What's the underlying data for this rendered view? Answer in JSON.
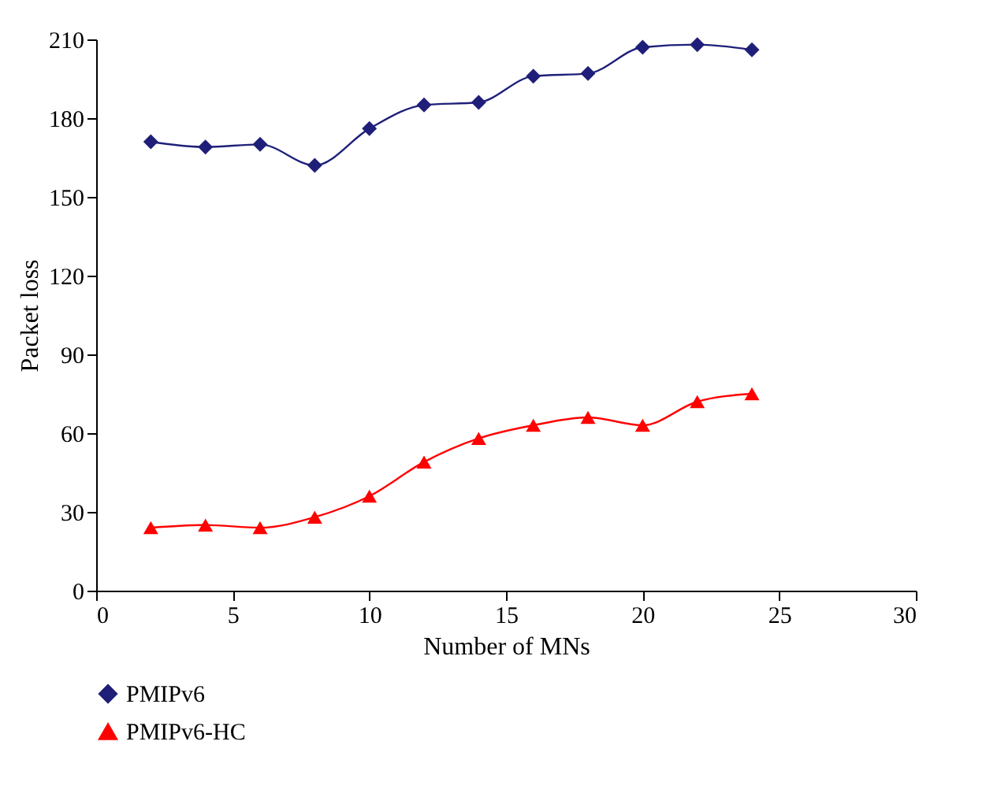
{
  "chart_data": {
    "type": "line",
    "xlabel": "Number of MNs",
    "ylabel": "Packet loss",
    "x": [
      2,
      4,
      6,
      8,
      10,
      12,
      14,
      16,
      18,
      20,
      22,
      24
    ],
    "series": [
      {
        "name": "PMIPv6",
        "color": "#1f1f7a",
        "marker": "diamond",
        "values": [
          171,
          169,
          170,
          162,
          176,
          185,
          186,
          196,
          197,
          207,
          208,
          206
        ]
      },
      {
        "name": "PMIPv6-HC",
        "color": "#ff0000",
        "marker": "triangle",
        "values": [
          24,
          25,
          24,
          28,
          36,
          49,
          58,
          63,
          66,
          63,
          72,
          75
        ]
      }
    ],
    "xlim": [
      0,
      30
    ],
    "xticks": [
      0,
      5,
      10,
      15,
      20,
      25,
      30
    ],
    "ylim": [
      0,
      210
    ],
    "yticks": [
      0,
      30,
      60,
      90,
      120,
      150,
      180,
      210
    ],
    "grid": false,
    "legend": "bottom left",
    "line_style": "solid"
  }
}
